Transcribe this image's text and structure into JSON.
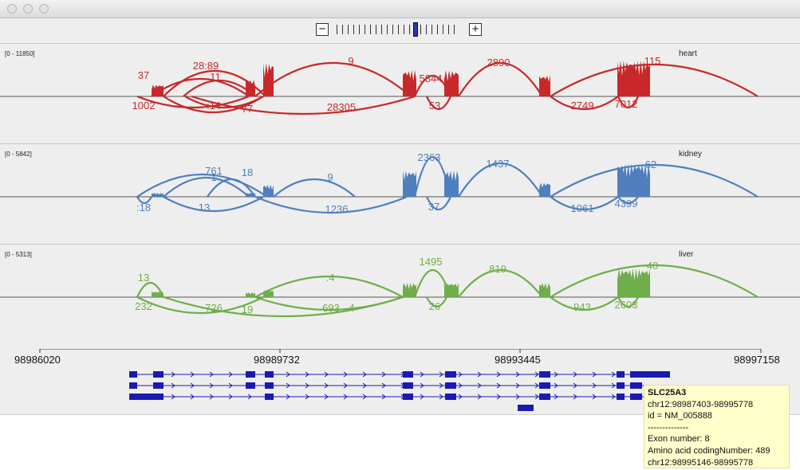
{
  "window": {
    "controls": [
      "close",
      "minimize",
      "zoom"
    ]
  },
  "zoom": {
    "minus_label": "−",
    "plus_label": "+",
    "level_index": 14,
    "tick_count": 22
  },
  "tracks": [
    {
      "name": "heart",
      "range": "[0 - 11850]",
      "color": "#c8282a",
      "above": [
        "37",
        "28:89",
        "11",
        "9",
        "5844",
        "2890",
        "115"
      ],
      "below": [
        "1002",
        ":14",
        "77",
        "28305",
        "53",
        "2749",
        "7012"
      ]
    },
    {
      "name": "kidney",
      "range": "[0 - 5842]",
      "color": "#4f7fbf",
      "above": [
        "761",
        "18",
        "1",
        "9",
        "2363",
        "1437",
        "62"
      ],
      "below": [
        ":18",
        "13",
        "1236",
        "37",
        "1061",
        "4399"
      ]
    },
    {
      "name": "liver",
      "range": "[0 - 5313]",
      "color": "#6fae4a",
      "above": [
        "13",
        ":4",
        "1495",
        "819",
        "40"
      ],
      "below": [
        "232",
        "726",
        "19",
        "693",
        "4",
        "26",
        "943",
        "2603"
      ]
    }
  ],
  "ruler": {
    "ticks": [
      "98986020",
      "98989732",
      "98993445",
      "98997158"
    ]
  },
  "gene_color": "#1a1ab0",
  "tooltip": {
    "gene": "SLC25A3",
    "lines": [
      "chr12:98987403-98995778",
      "id = NM_005888",
      "--------------",
      "Exon number: 8",
      "Amino acid codingNumber: 489",
      "chr12:98995146-98995778"
    ]
  }
}
